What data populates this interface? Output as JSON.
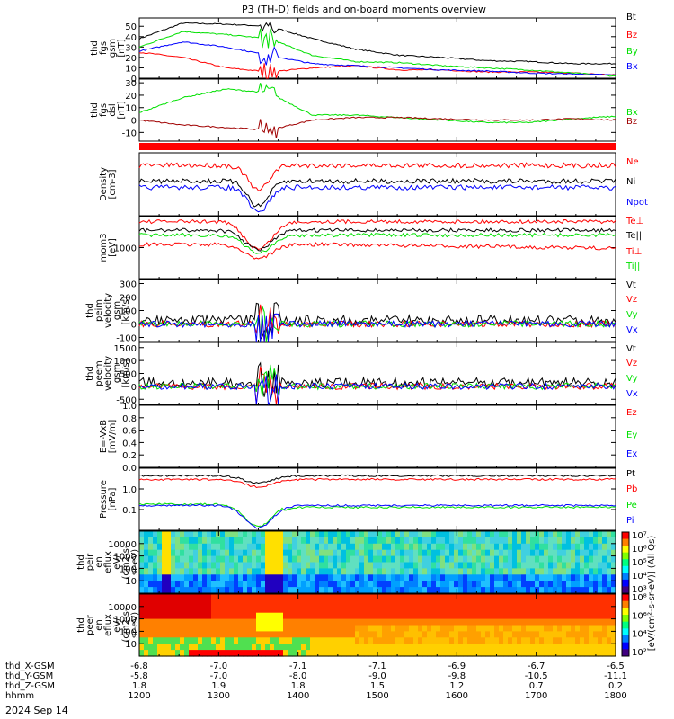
{
  "title": "P3 (TH-D) fields and on-board moments overview",
  "date_label": "2024 Sep 14",
  "orbit_labels": [
    "thd_X-GSM",
    "thd_Y-GSM",
    "thd_Z-GSM",
    "hhmm"
  ],
  "colors": {
    "black": "#000000",
    "red": "#ff0000",
    "green": "#00e000",
    "blue": "#0000ff",
    "brown": "#a00000"
  },
  "chart_data": {
    "type": "line",
    "x_ticks": [
      "1200",
      "1300",
      "1400",
      "1500",
      "1600",
      "1700",
      "1800"
    ],
    "orbit": {
      "X": [
        "-6.8",
        "-7.0",
        "-7.1",
        "-7.1",
        "-6.9",
        "-6.7",
        "-6.5"
      ],
      "Y": [
        "-5.8",
        "-7.0",
        "-8.0",
        "-9.0",
        "-9.8",
        "-10.5",
        "-11.1"
      ],
      "Z": [
        "1.8",
        "1.9",
        "1.8",
        "1.5",
        "1.2",
        "0.7",
        "0.2"
      ]
    },
    "panels": [
      {
        "id": "fgs",
        "ylabel": [
          "thd",
          "fgs",
          "gsm",
          "[nT]"
        ],
        "ticks": [
          "50",
          "40",
          "30",
          "20",
          "10",
          "0"
        ],
        "ylim": [
          0,
          58
        ],
        "series": [
          {
            "name": "Bt",
            "color": "black",
            "values": [
              38,
              53,
              52,
              50,
              38,
              28,
              22,
              20,
              17,
              16,
              14,
              14
            ]
          },
          {
            "name": "Bz",
            "color": "red",
            "values": [
              25,
              20,
              10,
              6,
              10,
              12,
              8,
              8,
              6,
              6,
              5,
              3
            ]
          },
          {
            "name": "By",
            "color": "green",
            "values": [
              30,
              45,
              42,
              38,
              22,
              16,
              15,
              12,
              10,
              8,
              5,
              2
            ]
          },
          {
            "name": "Bx",
            "color": "blue",
            "values": [
              26,
              35,
              30,
              22,
              14,
              12,
              10,
              8,
              7,
              5,
              4,
              3
            ]
          }
        ]
      },
      {
        "id": "fgsdsl",
        "ylabel": [
          "thd",
          "fgs",
          "dsl",
          "[nT]"
        ],
        "ticks": [
          "30",
          "20",
          "10",
          "0",
          "-10"
        ],
        "ylim": [
          -17,
          33
        ],
        "series": [
          {
            "name": "Bx",
            "color": "green",
            "values": [
              6,
              18,
              25,
              22,
              4,
              4,
              2,
              0,
              -2,
              -2,
              1,
              3
            ]
          },
          {
            "name": "Bz",
            "color": "brown",
            "values": [
              0,
              -4,
              -6,
              -8,
              0,
              2,
              2,
              1,
              0,
              0,
              1,
              0
            ]
          }
        ]
      },
      {
        "id": "density",
        "ylabel": [
          "Density",
          "[cm-3]"
        ],
        "ticks": [],
        "log": true,
        "series": [
          {
            "name": "Ne",
            "color": "red"
          },
          {
            "name": "Ni",
            "color": "black"
          },
          {
            "name": "Npot",
            "color": "blue"
          }
        ]
      },
      {
        "id": "temp",
        "ylabel": [
          "mom3",
          "[eV]"
        ],
        "ticks": [
          "1000"
        ],
        "log": true,
        "series": [
          {
            "name": "Te⊥",
            "color": "red"
          },
          {
            "name": "Te||",
            "color": "black"
          },
          {
            "name": "Ti⊥",
            "color": "red"
          },
          {
            "name": "Ti||",
            "color": "green"
          }
        ]
      },
      {
        "id": "vi",
        "ylabel": [
          "thd",
          "peim",
          "velocity",
          "gsm",
          "[km/s]"
        ],
        "ticks": [
          "300",
          "200",
          "100",
          "0",
          "-100"
        ],
        "ylim": [
          -130,
          330
        ],
        "series": [
          {
            "name": "Vt",
            "color": "black"
          },
          {
            "name": "Vz",
            "color": "red"
          },
          {
            "name": "Vy",
            "color": "green"
          },
          {
            "name": "Vx",
            "color": "blue"
          }
        ]
      },
      {
        "id": "ve",
        "ylabel": [
          "thd",
          "peem",
          "velocity",
          "gsm",
          "[km/s]"
        ],
        "ticks": [
          "1500",
          "1000",
          "500",
          "0",
          "-500"
        ],
        "ylim": [
          -700,
          1700
        ],
        "series": [
          {
            "name": "Vt",
            "color": "black"
          },
          {
            "name": "Vz",
            "color": "red"
          },
          {
            "name": "Vy",
            "color": "green"
          },
          {
            "name": "Vx",
            "color": "blue"
          }
        ]
      },
      {
        "id": "efield",
        "ylabel": [
          "E=-VxB",
          "[mV/m]"
        ],
        "ticks": [
          "1.0",
          "0.8",
          "0.6",
          "0.4",
          "0.2",
          "0.0"
        ],
        "ylim": [
          0,
          1
        ],
        "series": [
          {
            "name": "Ez",
            "color": "red"
          },
          {
            "name": "Ey",
            "color": "green"
          },
          {
            "name": "Ex",
            "color": "blue"
          }
        ]
      },
      {
        "id": "pressure",
        "ylabel": [
          "Pressure",
          "[nPa]"
        ],
        "ticks": [
          "1.0",
          "0.1"
        ],
        "log": true,
        "series": [
          {
            "name": "Pt",
            "color": "black"
          },
          {
            "name": "Pb",
            "color": "red"
          },
          {
            "name": "Pe",
            "color": "green"
          },
          {
            "name": "Pi",
            "color": "blue"
          }
        ]
      },
      {
        "id": "ispec",
        "ylabel": [
          "thd",
          "peir",
          "en",
          "eflux",
          "eV/",
          "(cm2-s-",
          "sr-eV)"
        ],
        "ticks": [
          "10000",
          "1000",
          "100",
          "10"
        ],
        "spectrogram": true,
        "scheme": "ion"
      },
      {
        "id": "espec",
        "ylabel": [
          "thd",
          "peer",
          "en",
          "eflux",
          "eV/",
          "(cm2-s-",
          "sr-eV)"
        ],
        "ticks": [
          "10000",
          "1000",
          "100",
          "10"
        ],
        "spectrogram": true,
        "scheme": "electron"
      }
    ],
    "colorbars": [
      {
        "ticks": [
          "10⁷",
          "10⁶",
          "10⁵",
          "10⁴",
          "10³"
        ]
      },
      {
        "ticks": [
          "10⁸",
          "10⁶",
          "10⁴",
          "10²"
        ]
      }
    ],
    "colorbar_label": "[eV/(cm²-s-sr-eV)]",
    "colorbar_label_side": "[eV/(cm²-s-sr-eV)] (All Qs)"
  }
}
